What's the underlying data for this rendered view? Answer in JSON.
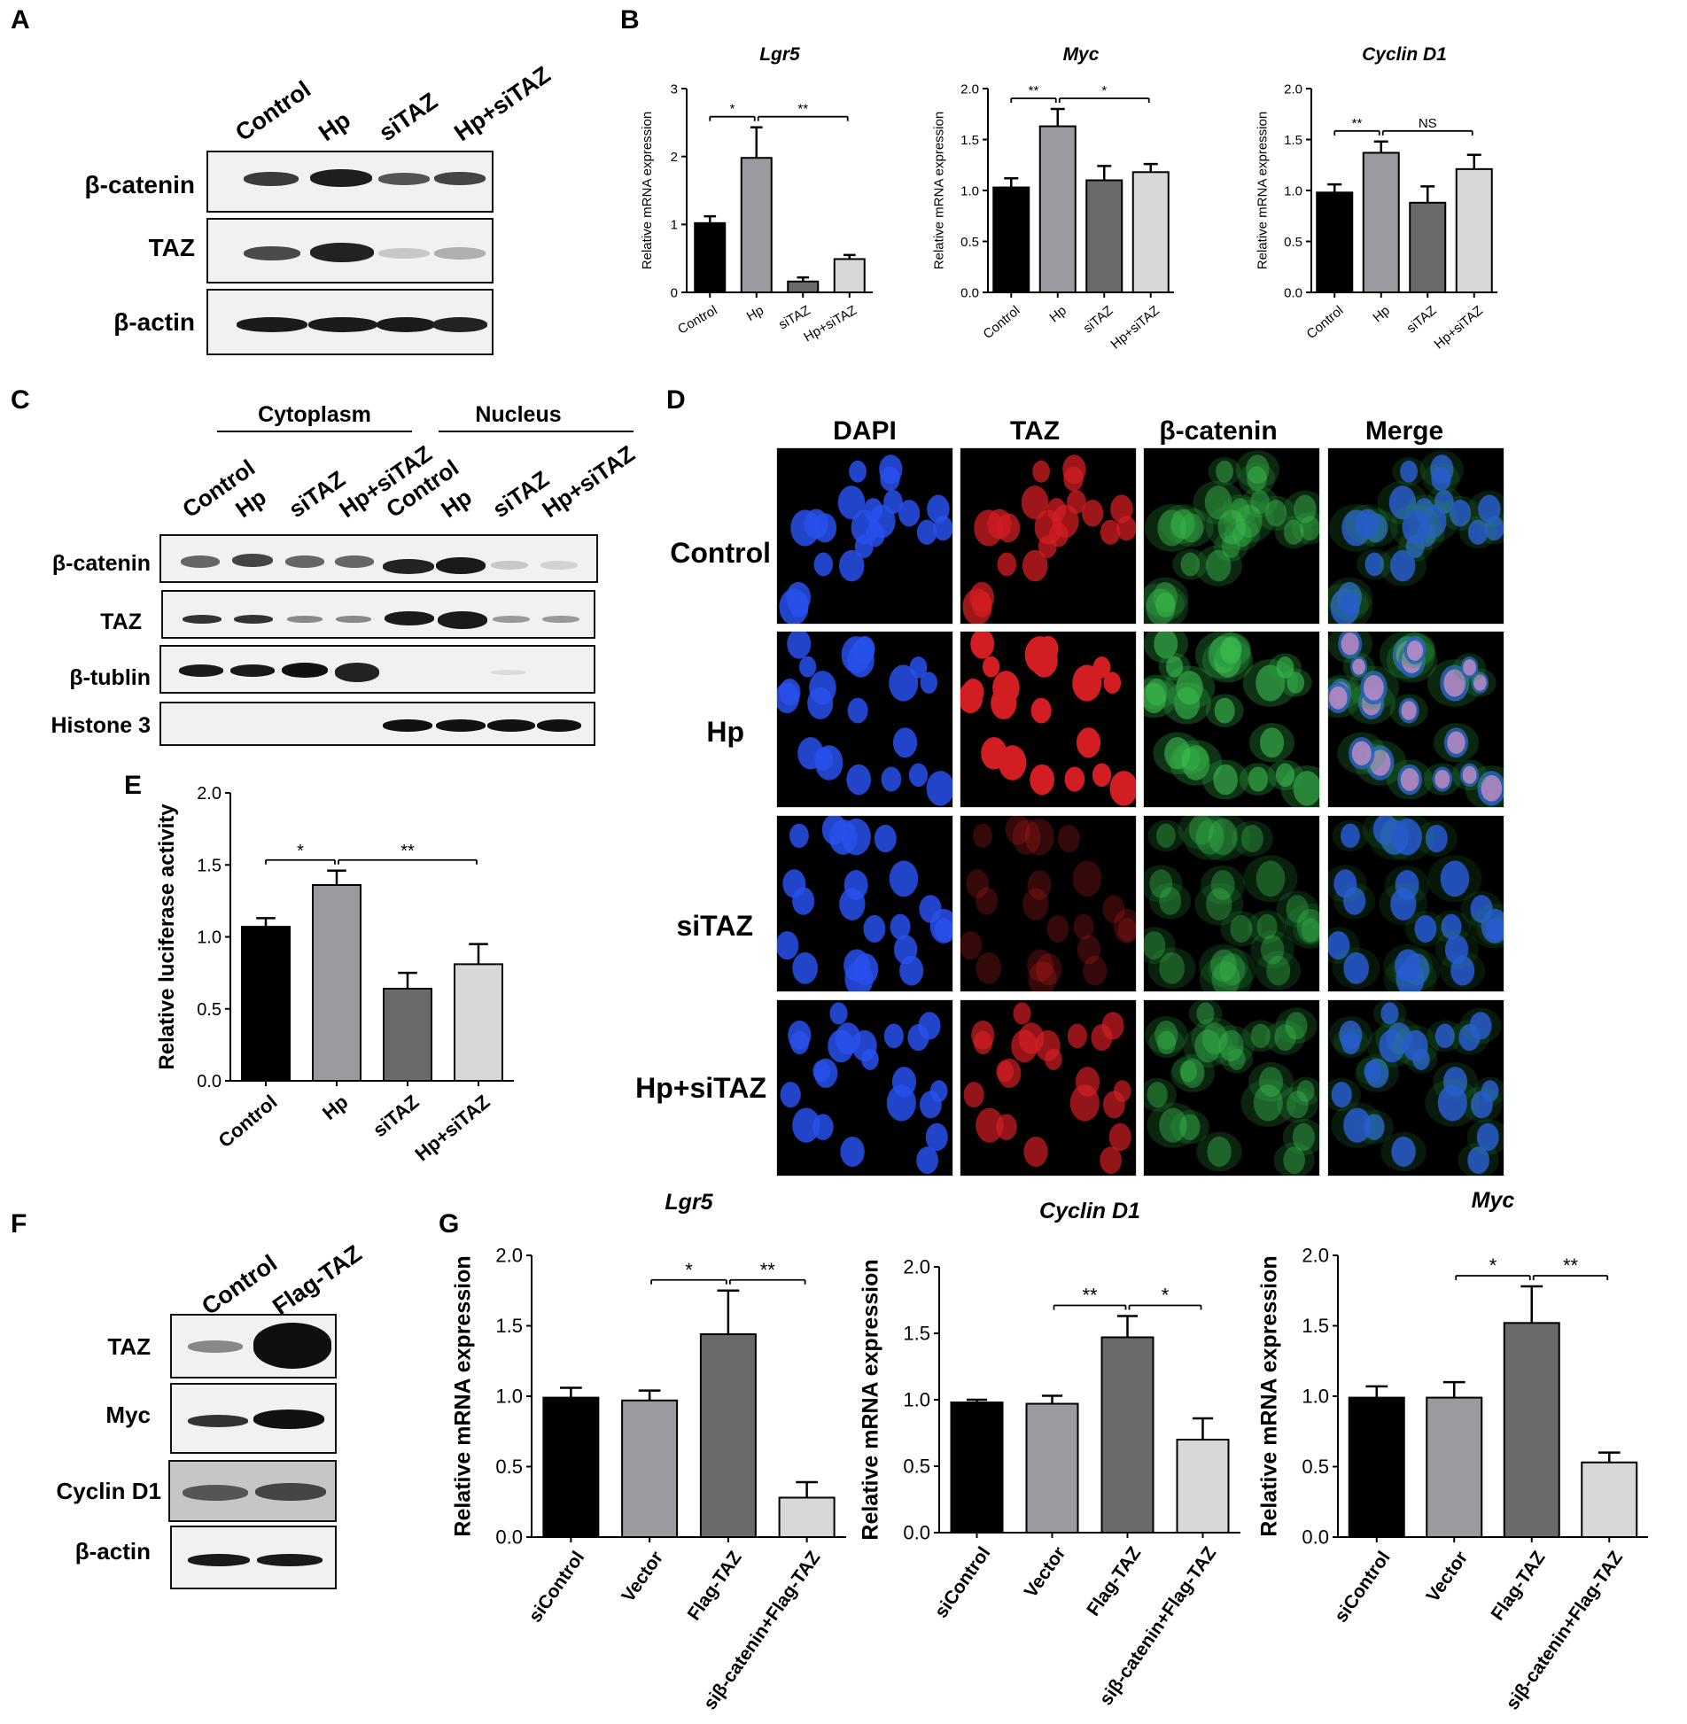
{
  "panels": {
    "A": "A",
    "B": "B",
    "C": "C",
    "D": "D",
    "E": "E",
    "F": "F",
    "G": "G"
  },
  "panel_A": {
    "lanes": [
      "Control",
      "Hp",
      "siTAZ",
      "Hp+siTAZ"
    ],
    "rows": [
      "β-catenin",
      "TAZ",
      "β-actin"
    ]
  },
  "panel_C": {
    "groups": [
      "Cytoplasm",
      "Nucleus"
    ],
    "lanes": [
      "Control",
      "Hp",
      "siTAZ",
      "Hp+siTAZ",
      "Control",
      "Hp",
      "siTAZ",
      "Hp+siTAZ"
    ],
    "rows": [
      "β-catenin",
      "TAZ",
      "β-tublin",
      "Histone 3"
    ]
  },
  "panel_D": {
    "columns": [
      "DAPI",
      "TAZ",
      "β-catenin",
      "Merge"
    ],
    "rows": [
      "Control",
      "Hp",
      "siTAZ",
      "Hp+siTAZ"
    ]
  },
  "panel_F": {
    "lanes": [
      "Control",
      "Flag-TAZ"
    ],
    "rows": [
      "TAZ",
      "Myc",
      "Cyclin D1",
      "β-actin"
    ]
  },
  "chart_data": [
    {
      "id": "B1",
      "panel": "B",
      "type": "bar",
      "title": "Lgr5",
      "ylabel": "Relative  mRNA expression",
      "categories": [
        "Control",
        "Hp",
        "siTAZ",
        "Hp+siTAZ"
      ],
      "values": [
        1.02,
        1.98,
        0.16,
        0.49
      ],
      "errors": [
        0.1,
        0.45,
        0.06,
        0.06
      ],
      "ylim": [
        0,
        3
      ],
      "yticks": [
        0,
        1,
        2,
        3
      ],
      "significance": [
        {
          "from": 0,
          "to": 1,
          "label": "*"
        },
        {
          "from": 1,
          "to": 3,
          "label": "**"
        }
      ]
    },
    {
      "id": "B2",
      "panel": "B",
      "type": "bar",
      "title": "Myc",
      "ylabel": "Relative  mRNA expression",
      "categories": [
        "Control",
        "Hp",
        "siTAZ",
        "Hp+siTAZ"
      ],
      "values": [
        1.03,
        1.63,
        1.1,
        1.18
      ],
      "errors": [
        0.09,
        0.17,
        0.14,
        0.08
      ],
      "ylim": [
        0,
        2
      ],
      "yticks": [
        0.0,
        0.5,
        1.0,
        1.5,
        2.0
      ],
      "significance": [
        {
          "from": 0,
          "to": 1,
          "label": "**"
        },
        {
          "from": 1,
          "to": 3,
          "label": "*"
        }
      ]
    },
    {
      "id": "B3",
      "panel": "B",
      "type": "bar",
      "title": "Cyclin D1",
      "ylabel": "Relative  mRNA expression",
      "categories": [
        "Control",
        "Hp",
        "siTAZ",
        "Hp+siTAZ"
      ],
      "values": [
        0.98,
        1.37,
        0.88,
        1.21
      ],
      "errors": [
        0.08,
        0.11,
        0.16,
        0.14
      ],
      "ylim": [
        0,
        2
      ],
      "yticks": [
        0.0,
        0.5,
        1.0,
        1.5,
        2.0
      ],
      "significance": [
        {
          "from": 0,
          "to": 1,
          "label": "**"
        },
        {
          "from": 1,
          "to": 3,
          "label": "NS"
        }
      ]
    },
    {
      "id": "E",
      "panel": "E",
      "type": "bar",
      "title": "",
      "ylabel": "Relative luciferase activity",
      "categories": [
        "Control",
        "Hp",
        "siTAZ",
        "Hp+siTAZ"
      ],
      "values": [
        1.07,
        1.36,
        0.64,
        0.81
      ],
      "errors": [
        0.06,
        0.1,
        0.11,
        0.14
      ],
      "ylim": [
        0,
        2
      ],
      "yticks": [
        0.0,
        0.5,
        1.0,
        1.5,
        2.0
      ],
      "significance": [
        {
          "from": 0,
          "to": 1,
          "label": "*"
        },
        {
          "from": 1,
          "to": 3,
          "label": "**"
        }
      ]
    },
    {
      "id": "G1",
      "panel": "G",
      "type": "bar",
      "title": "Lgr5",
      "ylabel": "Relative mRNA expression",
      "categories": [
        "siControl",
        "Vector",
        "Flag-TAZ",
        "siβ-catenin+Flag-TAZ"
      ],
      "values": [
        0.99,
        0.97,
        1.44,
        0.28
      ],
      "errors": [
        0.07,
        0.07,
        0.31,
        0.11
      ],
      "ylim": [
        0,
        2
      ],
      "yticks": [
        0.0,
        0.5,
        1.0,
        1.5,
        2.0
      ],
      "significance": [
        {
          "from": 1,
          "to": 2,
          "label": "*"
        },
        {
          "from": 2,
          "to": 3,
          "label": "**"
        }
      ]
    },
    {
      "id": "G2",
      "panel": "G",
      "type": "bar",
      "title": "Cyclin D1",
      "ylabel": "Relative mRNA expression",
      "categories": [
        "siControl",
        "Vector",
        "Flag-TAZ",
        "siβ-catenin+Flag-TAZ"
      ],
      "values": [
        0.98,
        0.97,
        1.47,
        0.7
      ],
      "errors": [
        0.02,
        0.06,
        0.16,
        0.16
      ],
      "ylim": [
        0,
        2
      ],
      "yticks": [
        0.0,
        0.5,
        1.0,
        1.5,
        2.0
      ],
      "significance": [
        {
          "from": 1,
          "to": 2,
          "label": "**"
        },
        {
          "from": 2,
          "to": 3,
          "label": "*"
        }
      ]
    },
    {
      "id": "G3",
      "panel": "G",
      "type": "bar",
      "title": "Myc",
      "ylabel": "Relative mRNA expression",
      "categories": [
        "siControl",
        "Vector",
        "Flag-TAZ",
        "siβ-catenin+Flag-TAZ"
      ],
      "values": [
        0.99,
        0.99,
        1.52,
        0.53
      ],
      "errors": [
        0.08,
        0.11,
        0.26,
        0.07
      ],
      "ylim": [
        0,
        2
      ],
      "yticks": [
        0.0,
        0.5,
        1.0,
        1.5,
        2.0
      ],
      "significance": [
        {
          "from": 1,
          "to": 2,
          "label": "*"
        },
        {
          "from": 2,
          "to": 3,
          "label": "**"
        }
      ]
    }
  ]
}
